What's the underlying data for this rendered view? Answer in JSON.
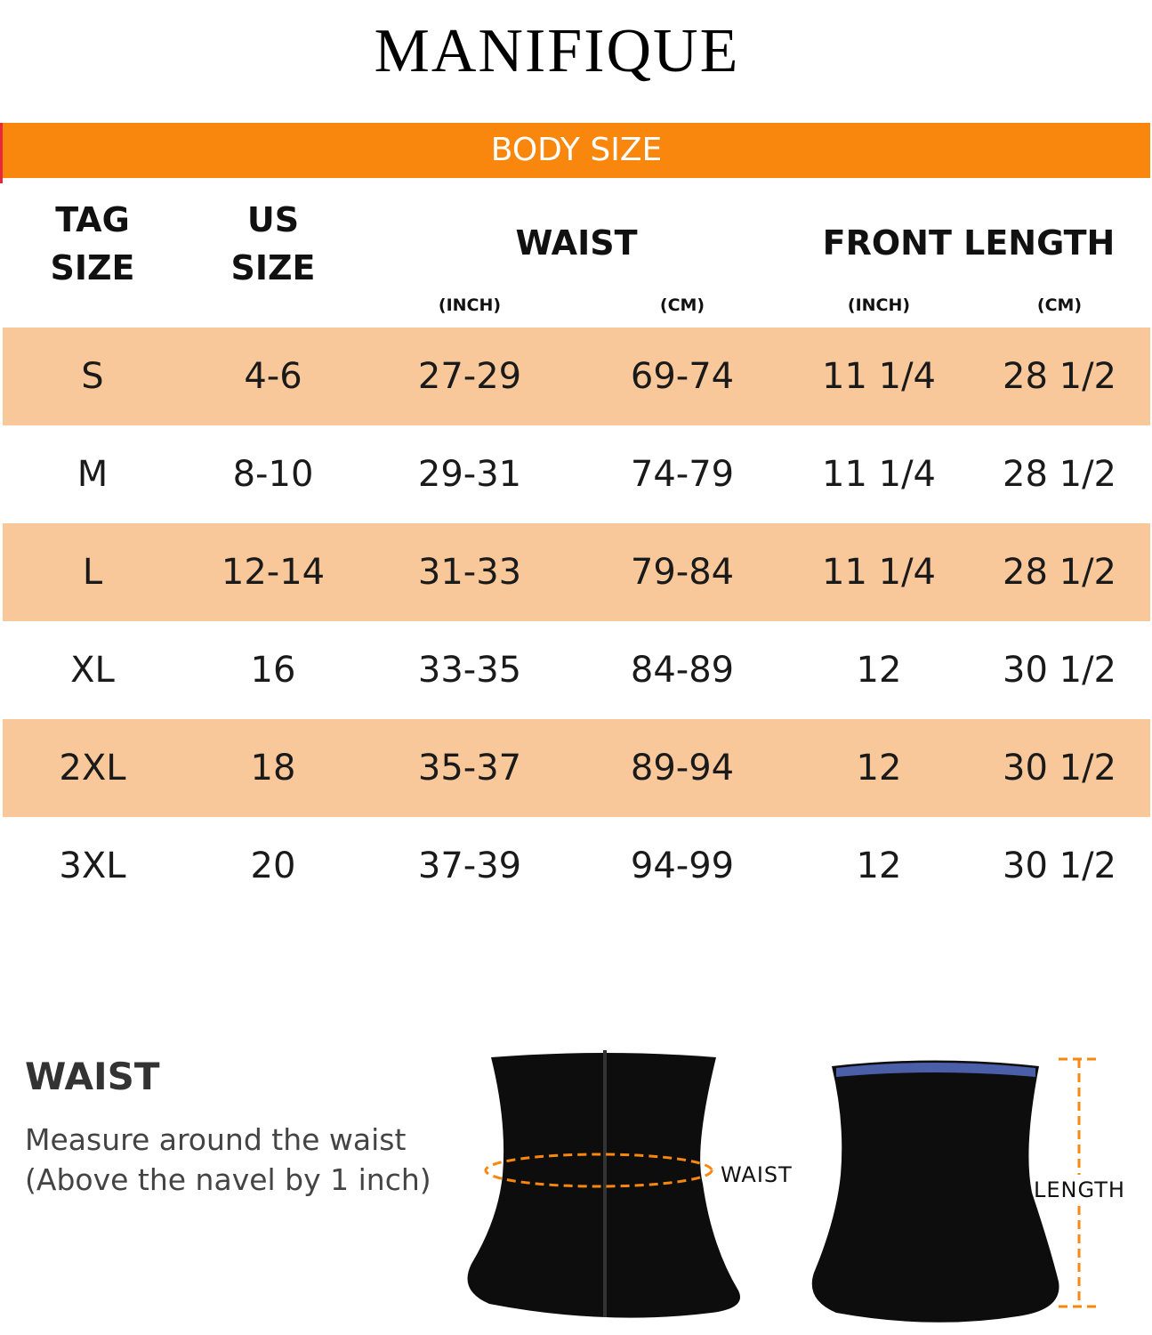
{
  "brand": "MANIFIQUE",
  "banner": "BODY SIZE",
  "headers": {
    "tag": [
      "TAG",
      "SIZE"
    ],
    "us": [
      "US",
      "SIZE"
    ],
    "waist": "WAIST",
    "front": "FRONT LENGTH",
    "units": [
      "(INCH)",
      "(CM)",
      "(INCH)",
      "(CM)"
    ]
  },
  "rows": [
    [
      "S",
      "4-6",
      "27-29",
      "69-74",
      "11 1/4",
      "28 1/2"
    ],
    [
      "M",
      "8-10",
      "29-31",
      "74-79",
      "11 1/4",
      "28 1/2"
    ],
    [
      "L",
      "12-14",
      "31-33",
      "79-84",
      "11 1/4",
      "28 1/2"
    ],
    [
      "XL",
      "16",
      "33-35",
      "84-89",
      "12",
      "30 1/2"
    ],
    [
      "2XL",
      "18",
      "35-37",
      "89-94",
      "12",
      "30 1/2"
    ],
    [
      "3XL",
      "20",
      "37-39",
      "94-99",
      "12",
      "30 1/2"
    ]
  ],
  "guide": {
    "title": "WAIST",
    "desc": [
      "Measure around the waist",
      "(Above the navel by 1 inch)"
    ],
    "waist_label": "WAIST",
    "length_label": "LENGTH"
  },
  "colors": {
    "accent": "#F9870E",
    "row_alt": "#F8C89A"
  }
}
